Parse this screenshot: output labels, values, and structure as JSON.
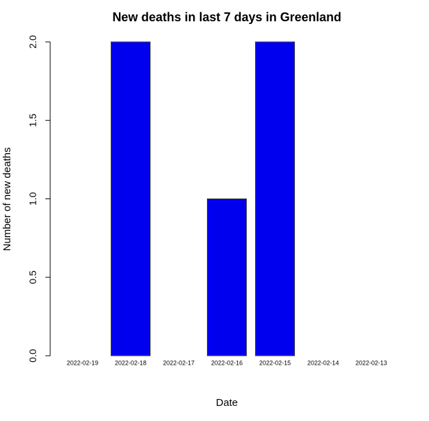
{
  "chart_data": {
    "type": "bar",
    "title": "New deaths in last 7 days in Greenland",
    "xlabel": "Date",
    "ylabel": "Number of new deaths",
    "categories": [
      "2022-02-19",
      "2022-02-18",
      "2022-02-17",
      "2022-02-16",
      "2022-02-15",
      "2022-02-14",
      "2022-02-13"
    ],
    "values": [
      0,
      2,
      0,
      1,
      2,
      0,
      0
    ],
    "ylim": [
      0,
      2
    ],
    "yticks": [
      "0.0",
      "0.5",
      "1.0",
      "1.5",
      "2.0"
    ],
    "bar_color": "#0000ee",
    "grid": false
  }
}
